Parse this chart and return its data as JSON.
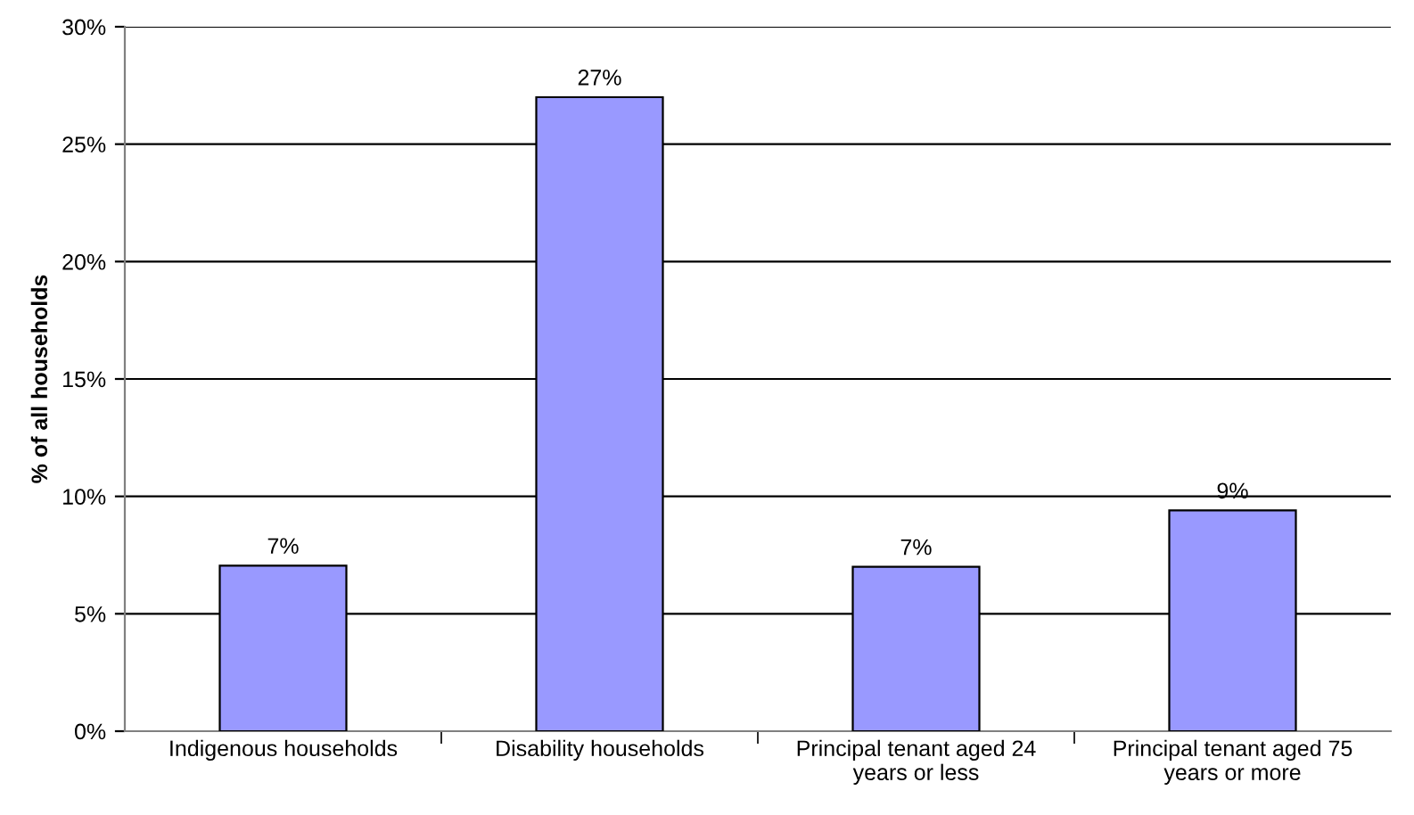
{
  "chart_data": {
    "type": "bar",
    "ylabel": "% of all households",
    "categories": [
      "Indigenous households",
      "Disability households",
      "Principal tenant aged 24\nyears or less",
      "Principal tenant aged 75\nyears or more"
    ],
    "values": [
      7.05,
      27,
      7,
      9.4
    ],
    "value_labels": [
      "7%",
      "27%",
      "7%",
      "9%"
    ],
    "color": "#9999ff",
    "ylim": [
      0,
      30
    ],
    "yticks": [
      {
        "value": 0,
        "label": "0%"
      },
      {
        "value": 5,
        "label": "5%"
      },
      {
        "value": 10,
        "label": "10%"
      },
      {
        "value": 15,
        "label": "15%"
      },
      {
        "value": 20,
        "label": "20%"
      },
      {
        "value": 25,
        "label": "25%"
      },
      {
        "value": 30,
        "label": "30%"
      }
    ],
    "grid": "y",
    "legend": false
  }
}
